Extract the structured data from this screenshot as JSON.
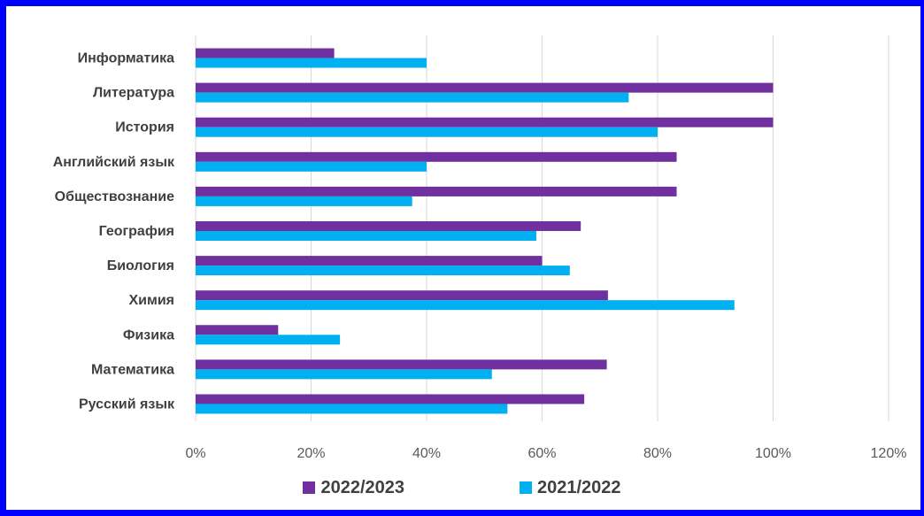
{
  "chart_data": {
    "type": "bar",
    "orientation": "horizontal",
    "categories": [
      "Информатика",
      "Литература",
      "История",
      "Английский язык",
      "Обществознание",
      "География",
      "Биология",
      "Химия",
      "Физика",
      "Математика",
      "Русский язык"
    ],
    "series": [
      {
        "name": "2022/2023",
        "color": "#7030a0",
        "values": [
          24,
          100,
          100,
          83.3,
          83.3,
          66.7,
          60,
          71.4,
          14.3,
          71.2,
          67.3
        ]
      },
      {
        "name": "2021/2022",
        "color": "#00b0f0",
        "values": [
          40,
          75,
          80,
          40,
          37.5,
          59,
          64.8,
          93.3,
          25,
          51.3,
          54
        ]
      }
    ],
    "x_ticks": [
      "0%",
      "20%",
      "40%",
      "60%",
      "80%",
      "100%",
      "120%"
    ],
    "xlim": [
      0,
      120
    ],
    "grid": true,
    "legend_position": "bottom"
  }
}
